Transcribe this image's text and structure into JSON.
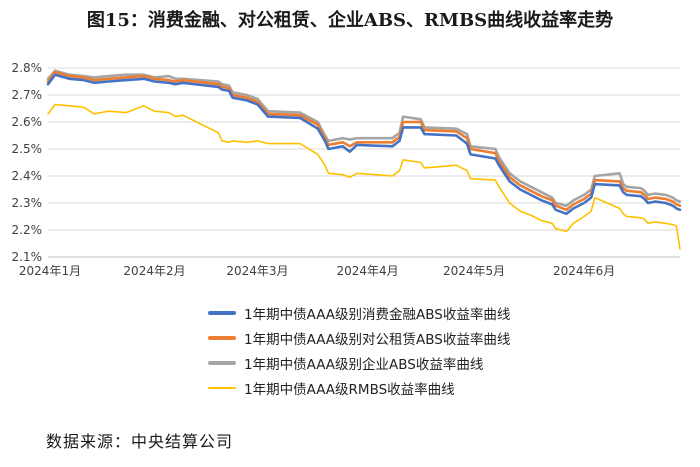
{
  "title": "图15：消费金融、对公租赁、企业ABS、RMBS曲线收益率走势",
  "source": "数据来源：中央结算公司",
  "chart_data": {
    "type": "line",
    "title": "图15：消费金融、对公租赁、企业ABS、RMBS曲线收益率走势",
    "xlabel": "",
    "ylabel": "",
    "x_range": [
      "2024-01-02",
      "2024-06-28"
    ],
    "x_ticks": [
      "2024年1月",
      "2024年2月",
      "2024年3月",
      "2024年4月",
      "2024年5月",
      "2024年6月"
    ],
    "y_ticks": [
      "2.1%",
      "2.2%",
      "2.3%",
      "2.4%",
      "2.5%",
      "2.6%",
      "2.7%",
      "2.8%"
    ],
    "ylim": [
      2.1,
      2.8
    ],
    "grid": true,
    "legend_position": "bottom",
    "series": [
      {
        "name": "1年期中债AAA级别消费金融ABS收益率曲线",
        "color": "#4472C4",
        "points": [
          [
            "2024-01-02",
            2.74
          ],
          [
            "2024-01-04",
            2.775
          ],
          [
            "2024-01-08",
            2.76
          ],
          [
            "2024-01-12",
            2.755
          ],
          [
            "2024-01-15",
            2.745
          ],
          [
            "2024-01-19",
            2.75
          ],
          [
            "2024-01-24",
            2.755
          ],
          [
            "2024-01-29",
            2.76
          ],
          [
            "2024-02-01",
            2.75
          ],
          [
            "2024-02-05",
            2.745
          ],
          [
            "2024-02-07",
            2.74
          ],
          [
            "2024-02-09",
            2.745
          ],
          [
            "2024-02-19",
            2.73
          ],
          [
            "2024-02-20",
            2.72
          ],
          [
            "2024-02-22",
            2.715
          ],
          [
            "2024-02-23",
            2.69
          ],
          [
            "2024-02-27",
            2.68
          ],
          [
            "2024-03-01",
            2.665
          ],
          [
            "2024-03-04",
            2.62
          ],
          [
            "2024-03-13",
            2.615
          ],
          [
            "2024-03-18",
            2.575
          ],
          [
            "2024-03-20",
            2.53
          ],
          [
            "2024-03-21",
            2.5
          ],
          [
            "2024-03-25",
            2.51
          ],
          [
            "2024-03-27",
            2.49
          ],
          [
            "2024-03-29",
            2.515
          ],
          [
            "2024-04-08",
            2.51
          ],
          [
            "2024-04-10",
            2.53
          ],
          [
            "2024-04-11",
            2.58
          ],
          [
            "2024-04-16",
            2.58
          ],
          [
            "2024-04-17",
            2.555
          ],
          [
            "2024-04-26",
            2.55
          ],
          [
            "2024-04-29",
            2.52
          ],
          [
            "2024-04-30",
            2.48
          ],
          [
            "2024-05-07",
            2.465
          ],
          [
            "2024-05-08",
            2.44
          ],
          [
            "2024-05-11",
            2.38
          ],
          [
            "2024-05-14",
            2.35
          ],
          [
            "2024-05-17",
            2.33
          ],
          [
            "2024-05-20",
            2.31
          ],
          [
            "2024-05-23",
            2.295
          ],
          [
            "2024-05-24",
            2.275
          ],
          [
            "2024-05-27",
            2.26
          ],
          [
            "2024-05-29",
            2.28
          ],
          [
            "2024-06-01",
            2.3
          ],
          [
            "2024-06-03",
            2.32
          ],
          [
            "2024-06-04",
            2.37
          ],
          [
            "2024-06-11",
            2.365
          ],
          [
            "2024-06-12",
            2.34
          ],
          [
            "2024-06-13",
            2.33
          ],
          [
            "2024-06-17",
            2.325
          ],
          [
            "2024-06-18",
            2.315
          ],
          [
            "2024-06-19",
            2.3
          ],
          [
            "2024-06-21",
            2.305
          ],
          [
            "2024-06-24",
            2.3
          ],
          [
            "2024-06-26",
            2.29
          ],
          [
            "2024-06-27",
            2.28
          ],
          [
            "2024-06-28",
            2.275
          ]
        ]
      },
      {
        "name": "1年期中债AAA级别对公租赁ABS收益率曲线",
        "color": "#ED7D31",
        "points": [
          [
            "2024-01-02",
            2.75
          ],
          [
            "2024-01-04",
            2.785
          ],
          [
            "2024-01-08",
            2.77
          ],
          [
            "2024-01-12",
            2.765
          ],
          [
            "2024-01-15",
            2.755
          ],
          [
            "2024-01-19",
            2.76
          ],
          [
            "2024-01-24",
            2.765
          ],
          [
            "2024-01-29",
            2.77
          ],
          [
            "2024-02-01",
            2.76
          ],
          [
            "2024-02-05",
            2.755
          ],
          [
            "2024-02-07",
            2.75
          ],
          [
            "2024-02-09",
            2.755
          ],
          [
            "2024-02-19",
            2.74
          ],
          [
            "2024-02-20",
            2.73
          ],
          [
            "2024-02-22",
            2.725
          ],
          [
            "2024-02-23",
            2.7
          ],
          [
            "2024-02-27",
            2.69
          ],
          [
            "2024-03-01",
            2.675
          ],
          [
            "2024-03-04",
            2.63
          ],
          [
            "2024-03-13",
            2.625
          ],
          [
            "2024-03-18",
            2.59
          ],
          [
            "2024-03-20",
            2.54
          ],
          [
            "2024-03-21",
            2.515
          ],
          [
            "2024-03-25",
            2.525
          ],
          [
            "2024-03-27",
            2.51
          ],
          [
            "2024-03-29",
            2.525
          ],
          [
            "2024-04-08",
            2.525
          ],
          [
            "2024-04-10",
            2.545
          ],
          [
            "2024-04-11",
            2.6
          ],
          [
            "2024-04-16",
            2.6
          ],
          [
            "2024-04-17",
            2.57
          ],
          [
            "2024-04-26",
            2.565
          ],
          [
            "2024-04-29",
            2.54
          ],
          [
            "2024-04-30",
            2.5
          ],
          [
            "2024-05-07",
            2.485
          ],
          [
            "2024-05-08",
            2.455
          ],
          [
            "2024-05-11",
            2.395
          ],
          [
            "2024-05-14",
            2.365
          ],
          [
            "2024-05-17",
            2.345
          ],
          [
            "2024-05-20",
            2.325
          ],
          [
            "2024-05-23",
            2.31
          ],
          [
            "2024-05-24",
            2.29
          ],
          [
            "2024-05-27",
            2.275
          ],
          [
            "2024-05-29",
            2.295
          ],
          [
            "2024-06-01",
            2.315
          ],
          [
            "2024-06-03",
            2.335
          ],
          [
            "2024-06-04",
            2.385
          ],
          [
            "2024-06-11",
            2.38
          ],
          [
            "2024-06-12",
            2.355
          ],
          [
            "2024-06-13",
            2.345
          ],
          [
            "2024-06-17",
            2.34
          ],
          [
            "2024-06-18",
            2.33
          ],
          [
            "2024-06-19",
            2.315
          ],
          [
            "2024-06-21",
            2.32
          ],
          [
            "2024-06-24",
            2.315
          ],
          [
            "2024-06-26",
            2.305
          ],
          [
            "2024-06-27",
            2.295
          ],
          [
            "2024-06-28",
            2.29
          ]
        ]
      },
      {
        "name": "1年期中债AAA级别企业ABS收益率曲线",
        "color": "#A5A5A5",
        "points": [
          [
            "2024-01-02",
            2.76
          ],
          [
            "2024-01-04",
            2.79
          ],
          [
            "2024-01-08",
            2.775
          ],
          [
            "2024-01-12",
            2.77
          ],
          [
            "2024-01-15",
            2.765
          ],
          [
            "2024-01-19",
            2.77
          ],
          [
            "2024-01-24",
            2.775
          ],
          [
            "2024-01-29",
            2.775
          ],
          [
            "2024-02-01",
            2.765
          ],
          [
            "2024-02-05",
            2.77
          ],
          [
            "2024-02-07",
            2.76
          ],
          [
            "2024-02-09",
            2.76
          ],
          [
            "2024-02-19",
            2.75
          ],
          [
            "2024-02-20",
            2.74
          ],
          [
            "2024-02-22",
            2.735
          ],
          [
            "2024-02-23",
            2.71
          ],
          [
            "2024-02-27",
            2.7
          ],
          [
            "2024-03-01",
            2.685
          ],
          [
            "2024-03-04",
            2.64
          ],
          [
            "2024-03-13",
            2.635
          ],
          [
            "2024-03-18",
            2.6
          ],
          [
            "2024-03-20",
            2.55
          ],
          [
            "2024-03-21",
            2.53
          ],
          [
            "2024-03-25",
            2.54
          ],
          [
            "2024-03-27",
            2.535
          ],
          [
            "2024-03-29",
            2.54
          ],
          [
            "2024-04-08",
            2.54
          ],
          [
            "2024-04-10",
            2.56
          ],
          [
            "2024-04-11",
            2.62
          ],
          [
            "2024-04-16",
            2.61
          ],
          [
            "2024-04-17",
            2.58
          ],
          [
            "2024-04-26",
            2.575
          ],
          [
            "2024-04-29",
            2.555
          ],
          [
            "2024-04-30",
            2.51
          ],
          [
            "2024-05-07",
            2.5
          ],
          [
            "2024-05-08",
            2.47
          ],
          [
            "2024-05-11",
            2.41
          ],
          [
            "2024-05-14",
            2.38
          ],
          [
            "2024-05-17",
            2.36
          ],
          [
            "2024-05-20",
            2.34
          ],
          [
            "2024-05-23",
            2.32
          ],
          [
            "2024-05-24",
            2.3
          ],
          [
            "2024-05-27",
            2.29
          ],
          [
            "2024-05-29",
            2.31
          ],
          [
            "2024-06-01",
            2.33
          ],
          [
            "2024-06-03",
            2.35
          ],
          [
            "2024-06-04",
            2.4
          ],
          [
            "2024-06-11",
            2.41
          ],
          [
            "2024-06-12",
            2.37
          ],
          [
            "2024-06-13",
            2.36
          ],
          [
            "2024-06-17",
            2.355
          ],
          [
            "2024-06-18",
            2.345
          ],
          [
            "2024-06-19",
            2.33
          ],
          [
            "2024-06-21",
            2.335
          ],
          [
            "2024-06-24",
            2.33
          ],
          [
            "2024-06-26",
            2.32
          ],
          [
            "2024-06-27",
            2.31
          ],
          [
            "2024-06-28",
            2.305
          ]
        ]
      },
      {
        "name": "1年期中债AAA级RMBS收益率曲线",
        "color": "#FFC000",
        "points": [
          [
            "2024-01-02",
            2.63
          ],
          [
            "2024-01-04",
            2.665
          ],
          [
            "2024-01-08",
            2.66
          ],
          [
            "2024-01-12",
            2.655
          ],
          [
            "2024-01-15",
            2.63
          ],
          [
            "2024-01-19",
            2.64
          ],
          [
            "2024-01-24",
            2.635
          ],
          [
            "2024-01-29",
            2.66
          ],
          [
            "2024-02-01",
            2.64
          ],
          [
            "2024-02-05",
            2.635
          ],
          [
            "2024-02-07",
            2.62
          ],
          [
            "2024-02-09",
            2.625
          ],
          [
            "2024-02-19",
            2.56
          ],
          [
            "2024-02-20",
            2.53
          ],
          [
            "2024-02-22",
            2.525
          ],
          [
            "2024-02-23",
            2.53
          ],
          [
            "2024-02-27",
            2.525
          ],
          [
            "2024-03-01",
            2.53
          ],
          [
            "2024-03-04",
            2.52
          ],
          [
            "2024-03-13",
            2.52
          ],
          [
            "2024-03-18",
            2.48
          ],
          [
            "2024-03-20",
            2.44
          ],
          [
            "2024-03-21",
            2.41
          ],
          [
            "2024-03-25",
            2.405
          ],
          [
            "2024-03-27",
            2.395
          ],
          [
            "2024-03-29",
            2.41
          ],
          [
            "2024-04-08",
            2.4
          ],
          [
            "2024-04-10",
            2.42
          ],
          [
            "2024-04-11",
            2.46
          ],
          [
            "2024-04-16",
            2.45
          ],
          [
            "2024-04-17",
            2.43
          ],
          [
            "2024-04-26",
            2.44
          ],
          [
            "2024-04-29",
            2.42
          ],
          [
            "2024-04-30",
            2.39
          ],
          [
            "2024-05-07",
            2.385
          ],
          [
            "2024-05-08",
            2.36
          ],
          [
            "2024-05-11",
            2.3
          ],
          [
            "2024-05-14",
            2.27
          ],
          [
            "2024-05-17",
            2.255
          ],
          [
            "2024-05-20",
            2.235
          ],
          [
            "2024-05-23",
            2.225
          ],
          [
            "2024-05-24",
            2.205
          ],
          [
            "2024-05-27",
            2.195
          ],
          [
            "2024-05-29",
            2.225
          ],
          [
            "2024-06-01",
            2.25
          ],
          [
            "2024-06-03",
            2.27
          ],
          [
            "2024-06-04",
            2.32
          ],
          [
            "2024-06-11",
            2.28
          ],
          [
            "2024-06-12",
            2.26
          ],
          [
            "2024-06-13",
            2.25
          ],
          [
            "2024-06-17",
            2.245
          ],
          [
            "2024-06-18",
            2.24
          ],
          [
            "2024-06-19",
            2.225
          ],
          [
            "2024-06-21",
            2.23
          ],
          [
            "2024-06-24",
            2.225
          ],
          [
            "2024-06-26",
            2.22
          ],
          [
            "2024-06-27",
            2.215
          ],
          [
            "2024-06-28",
            2.13
          ]
        ]
      }
    ]
  }
}
